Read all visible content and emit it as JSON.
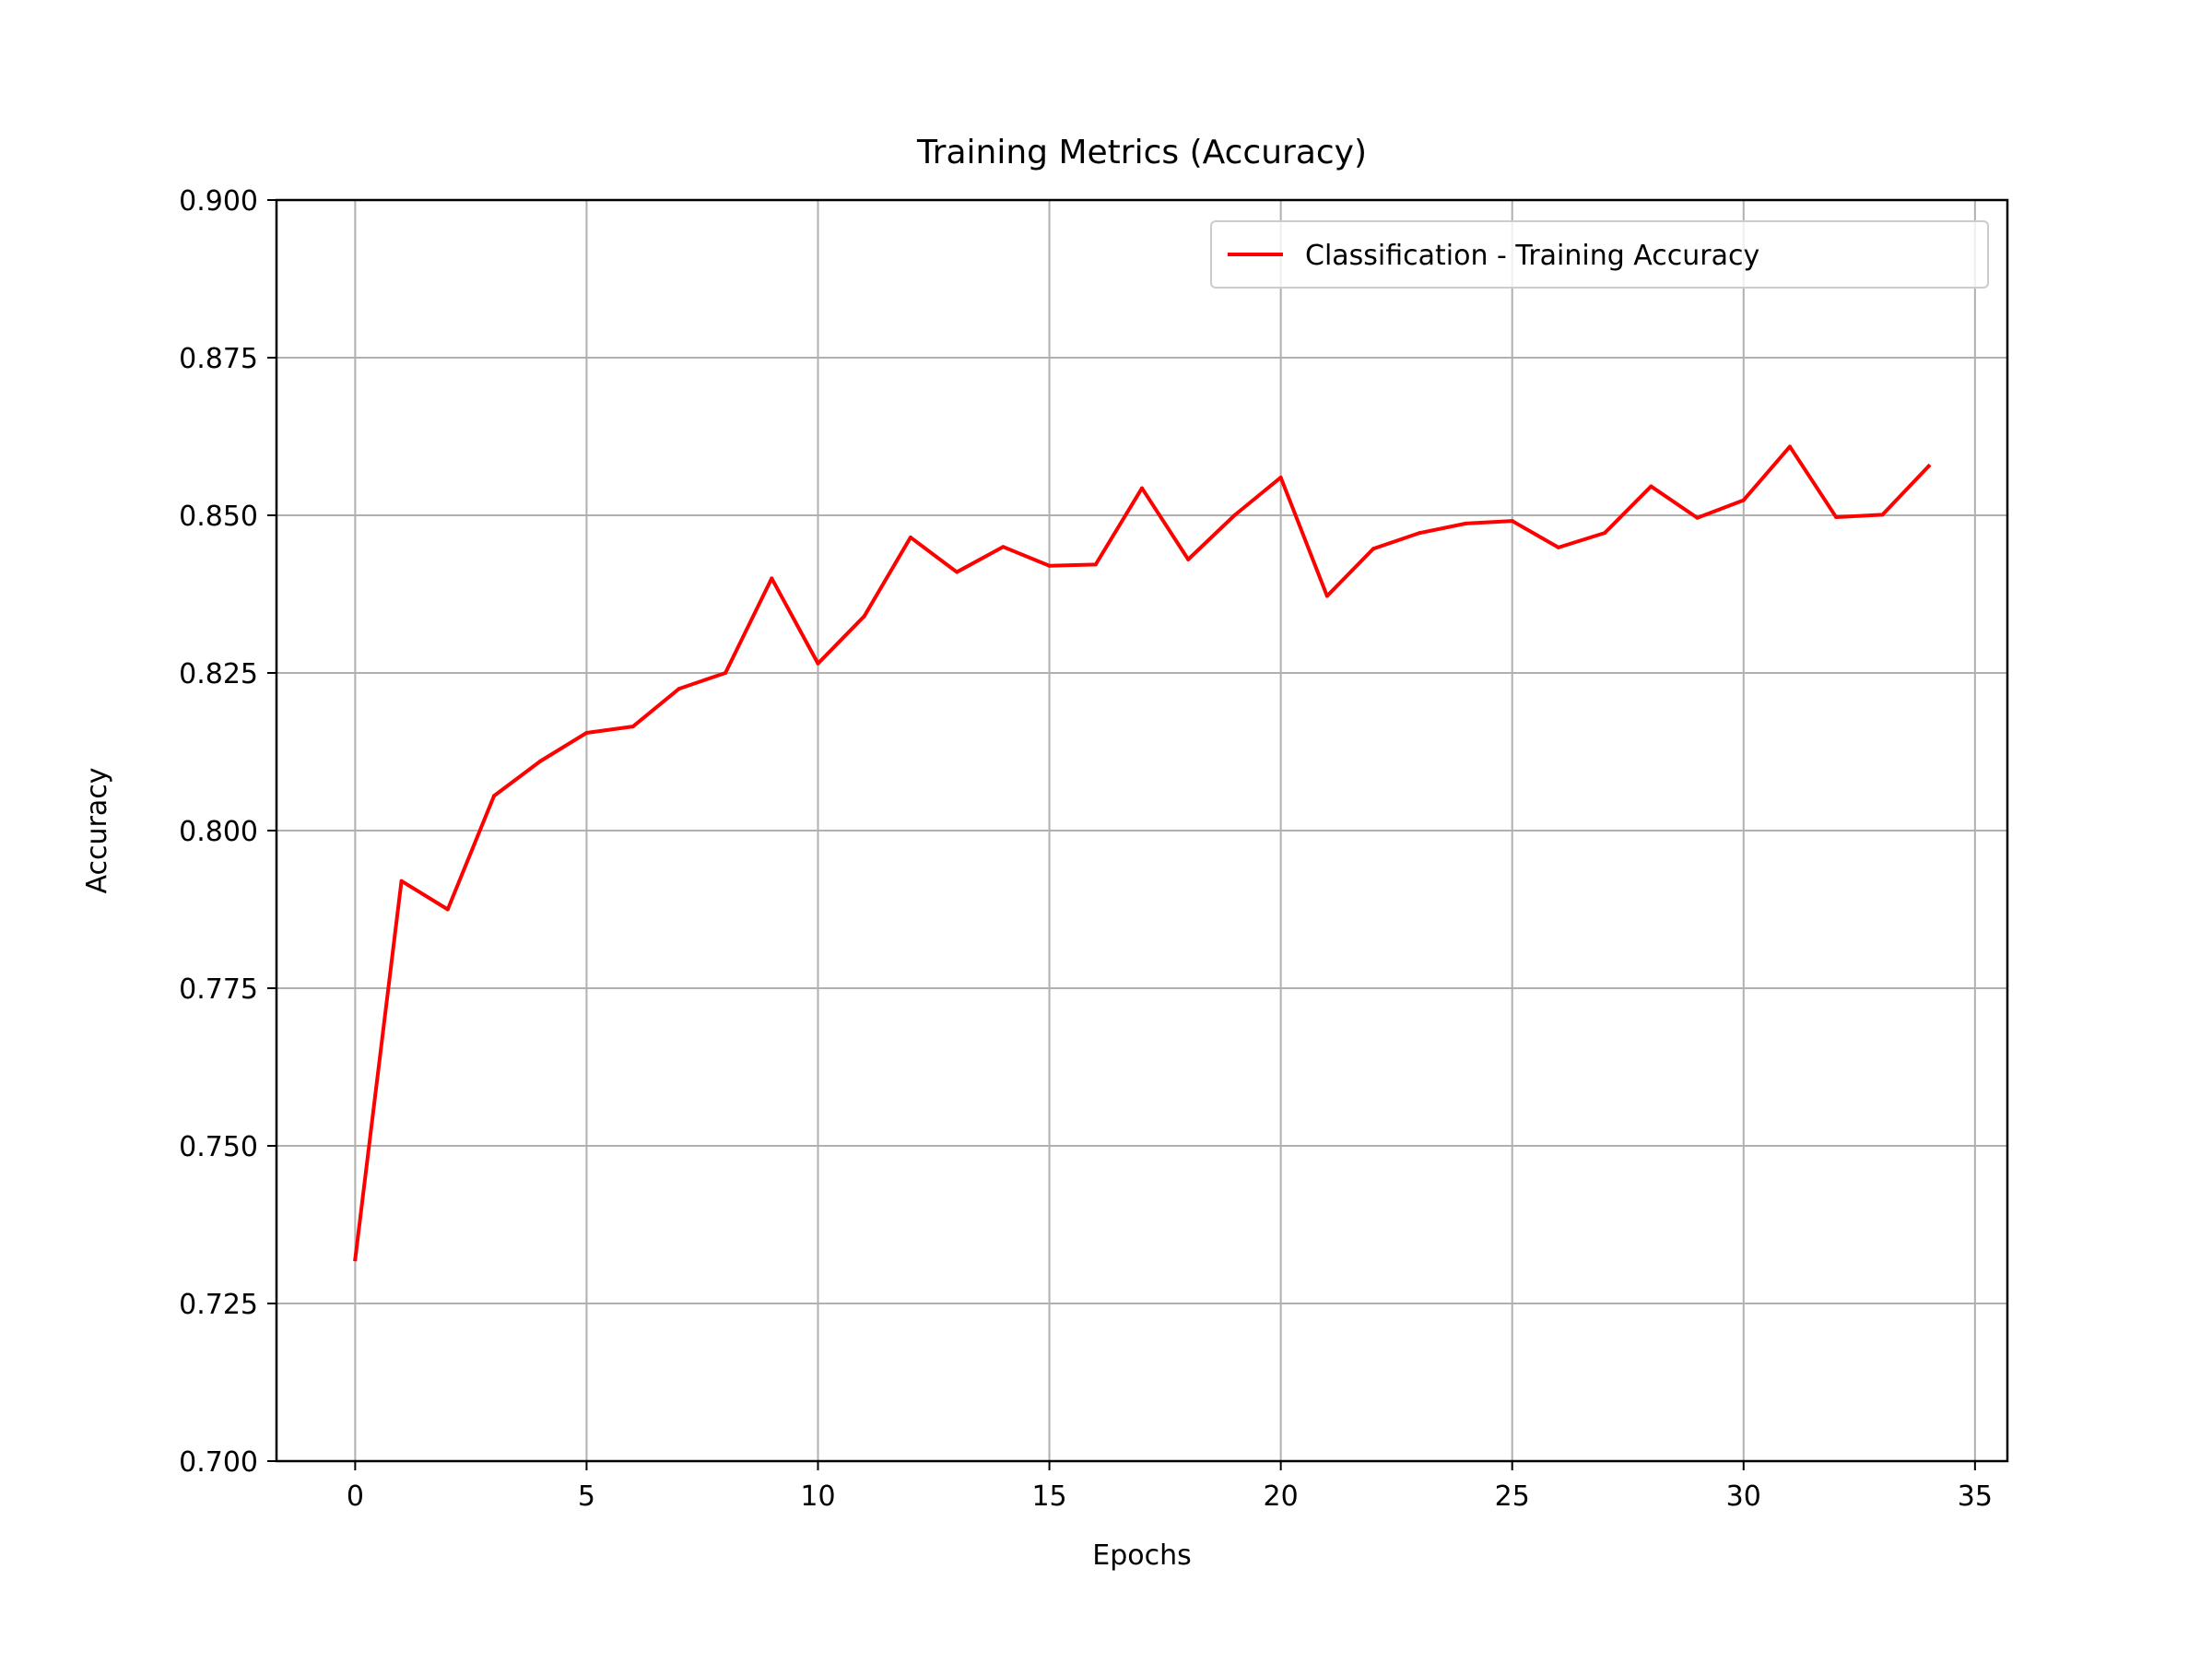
{
  "chart_data": {
    "type": "line",
    "title": "Training Metrics (Accuracy)",
    "xlabel": "Epochs",
    "ylabel": "Accuracy",
    "xlim": [
      -1.7,
      35.7
    ],
    "ylim": [
      0.7,
      0.9
    ],
    "grid": true,
    "legend_position": "top-right",
    "x_ticks": [
      0,
      5,
      10,
      15,
      20,
      25,
      30,
      35
    ],
    "x_tick_labels": [
      "0",
      "5",
      "10",
      "15",
      "20",
      "25",
      "30",
      "35"
    ],
    "y_ticks": [
      0.7,
      0.725,
      0.75,
      0.775,
      0.8,
      0.825,
      0.85,
      0.875,
      0.9
    ],
    "y_tick_labels": [
      "0.700",
      "0.725",
      "0.750",
      "0.775",
      "0.800",
      "0.825",
      "0.850",
      "0.875",
      "0.900"
    ],
    "series": [
      {
        "name": "Classification - Training Accuracy",
        "color": "#ff0000",
        "x": [
          0,
          1,
          2,
          3,
          4,
          5,
          6,
          7,
          8,
          9,
          10,
          11,
          12,
          13,
          14,
          15,
          16,
          17,
          18,
          19,
          20,
          21,
          22,
          23,
          24,
          25,
          26,
          27,
          28,
          29,
          30,
          31,
          32,
          33,
          34
        ],
        "y": [
          0.732,
          0.792,
          0.7875,
          0.8055,
          0.811,
          0.8155,
          0.8165,
          0.8225,
          0.825,
          0.84,
          0.8265,
          0.834,
          0.8465,
          0.841,
          0.845,
          0.842,
          0.8422,
          0.8543,
          0.843,
          0.85,
          0.856,
          0.8372,
          0.8447,
          0.8472,
          0.8487,
          0.8491,
          0.8449,
          0.8472,
          0.8546,
          0.8496,
          0.8524,
          0.8609,
          0.8497,
          0.8501,
          0.8578
        ]
      }
    ]
  }
}
